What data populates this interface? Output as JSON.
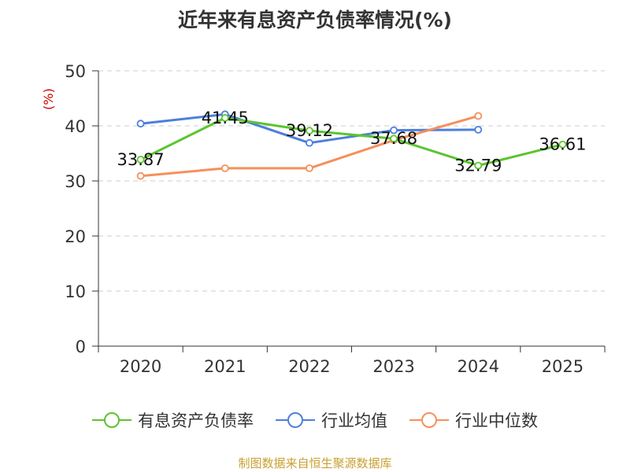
{
  "chart_data": {
    "type": "line",
    "title": "近年来有息资产负债率情况(%)",
    "ylabel": "(%)",
    "xlabel": "",
    "categories": [
      "2020",
      "2021",
      "2022",
      "2023",
      "2024",
      "2025"
    ],
    "ylim": [
      0,
      50
    ],
    "yticks": [
      0,
      10,
      20,
      30,
      40,
      50
    ],
    "grid": true,
    "legend_position": "bottom",
    "series": [
      {
        "name": "有息资产负债率",
        "color": "#5ac52e",
        "values": [
          33.87,
          41.45,
          39.12,
          37.68,
          32.79,
          36.61
        ],
        "labels": [
          "33.87",
          "41.45",
          "39.12",
          "37.68",
          "32.79",
          "36.61"
        ]
      },
      {
        "name": "行业均值",
        "color": "#4c7fdc",
        "values": [
          40.4,
          42.1,
          36.9,
          39.2,
          39.3,
          null
        ]
      },
      {
        "name": "行业中位数",
        "color": "#f5905c",
        "values": [
          30.9,
          32.3,
          32.3,
          37.4,
          41.8,
          null
        ]
      }
    ]
  },
  "source": "制图数据来自恒生聚源数据库"
}
